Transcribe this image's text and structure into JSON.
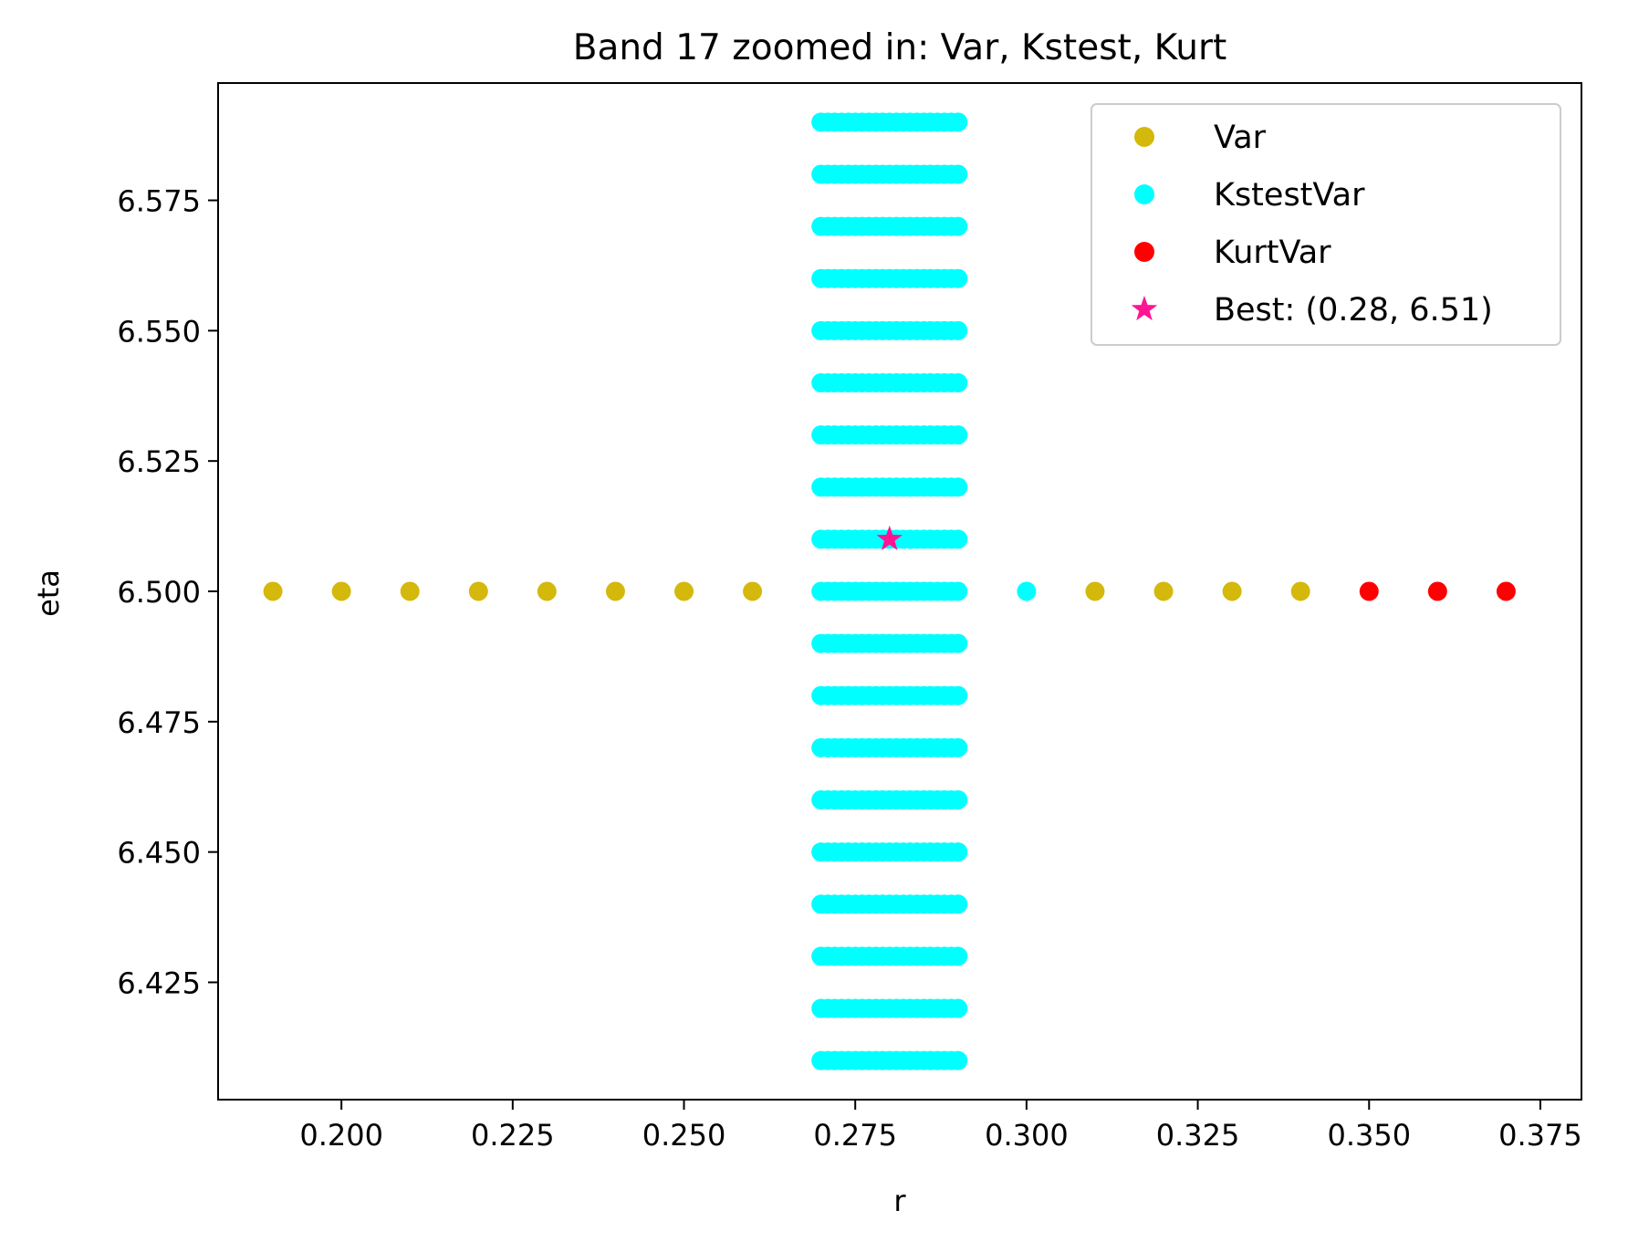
{
  "chart_data": {
    "type": "scatter",
    "title": "Band 17 zoomed in: Var, Kstest, Kurt",
    "xlabel": "r",
    "ylabel": "eta",
    "xlim": [
      0.182,
      0.381
    ],
    "ylim": [
      6.4025,
      6.5975
    ],
    "xticks": [
      0.2,
      0.225,
      0.25,
      0.275,
      0.3,
      0.325,
      0.35,
      0.375
    ],
    "xtick_labels": [
      "0.200",
      "0.225",
      "0.250",
      "0.275",
      "0.300",
      "0.325",
      "0.350",
      "0.375"
    ],
    "yticks": [
      6.425,
      6.45,
      6.475,
      6.5,
      6.525,
      6.55,
      6.575
    ],
    "ytick_labels": [
      "6.425",
      "6.450",
      "6.475",
      "6.500",
      "6.525",
      "6.550",
      "6.575"
    ],
    "grid": false,
    "legend_position": "top-right",
    "series": [
      {
        "name": "Var",
        "color": "#d4b80c",
        "marker": "circle",
        "points": [
          [
            0.19,
            6.5
          ],
          [
            0.2,
            6.5
          ],
          [
            0.21,
            6.5
          ],
          [
            0.22,
            6.5
          ],
          [
            0.23,
            6.5
          ],
          [
            0.24,
            6.5
          ],
          [
            0.25,
            6.5
          ],
          [
            0.26,
            6.5
          ],
          [
            0.31,
            6.5
          ],
          [
            0.32,
            6.5
          ],
          [
            0.33,
            6.5
          ],
          [
            0.34,
            6.5
          ]
        ]
      },
      {
        "name": "KstestVar",
        "color": "#00ffff",
        "marker": "circle",
        "grid": {
          "r_values": [
            0.27,
            0.271,
            0.272,
            0.273,
            0.274,
            0.275,
            0.276,
            0.277,
            0.278,
            0.279,
            0.28,
            0.281,
            0.282,
            0.283,
            0.284,
            0.285,
            0.286,
            0.287,
            0.288,
            0.289,
            0.29
          ],
          "eta_values": [
            6.41,
            6.42,
            6.43,
            6.44,
            6.45,
            6.46,
            6.47,
            6.48,
            6.49,
            6.5,
            6.51,
            6.52,
            6.53,
            6.54,
            6.55,
            6.56,
            6.57,
            6.58,
            6.59
          ]
        },
        "extra_points": [
          [
            0.3,
            6.5
          ]
        ]
      },
      {
        "name": "KurtVar",
        "color": "#ff0000",
        "marker": "circle",
        "points": [
          [
            0.35,
            6.5
          ],
          [
            0.36,
            6.5
          ],
          [
            0.37,
            6.5
          ]
        ]
      },
      {
        "name": "Best: (0.28, 6.51)",
        "color": "#ff1493",
        "marker": "star",
        "points": [
          [
            0.28,
            6.51
          ]
        ]
      }
    ]
  }
}
